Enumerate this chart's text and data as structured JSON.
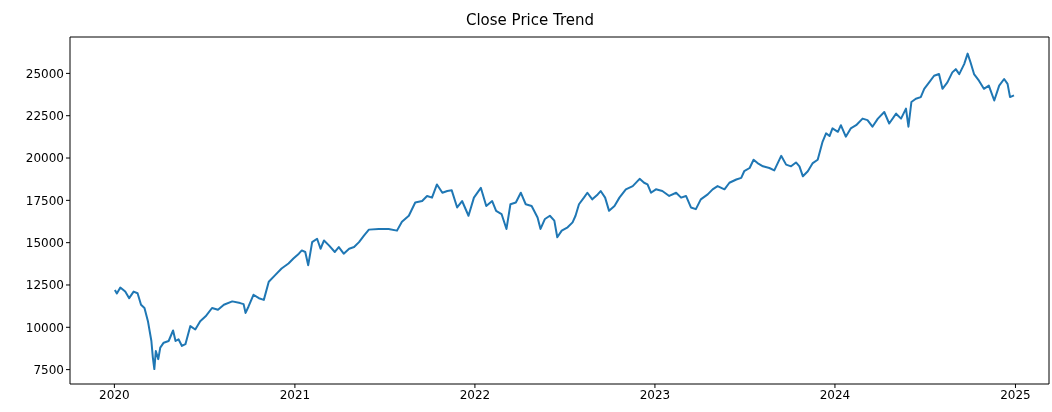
{
  "chart_data": {
    "type": "line",
    "title": "Close Price Trend",
    "x": [
      "2020-01-02",
      "2020-01-06",
      "2020-01-13",
      "2020-01-23",
      "2020-01-31",
      "2020-02-09",
      "2020-02-17",
      "2020-02-24",
      "2020-03-02",
      "2020-03-09",
      "2020-03-16",
      "2020-03-19",
      "2020-03-22",
      "2020-03-25",
      "2020-03-30",
      "2020-04-03",
      "2020-04-10",
      "2020-04-20",
      "2020-04-29",
      "2020-05-04",
      "2020-05-10",
      "2020-05-17",
      "2020-05-24",
      "2020-06-03",
      "2020-06-13",
      "2020-06-23",
      "2020-07-04",
      "2020-07-17",
      "2020-07-29",
      "2020-08-10",
      "2020-08-27",
      "2020-09-12",
      "2020-09-19",
      "2020-09-23",
      "2020-09-29",
      "2020-10-09",
      "2020-10-20",
      "2020-10-30",
      "2020-11-09",
      "2020-11-22",
      "2020-12-05",
      "2020-12-19",
      "2020-12-29",
      "2021-01-09",
      "2021-01-15",
      "2021-01-22",
      "2021-01-28",
      "2021-02-05",
      "2021-02-15",
      "2021-02-22",
      "2021-03-01",
      "2021-03-11",
      "2021-03-23",
      "2021-03-31",
      "2021-04-10",
      "2021-04-21",
      "2021-05-01",
      "2021-05-11",
      "2021-05-21",
      "2021-05-31",
      "2021-06-20",
      "2021-07-10",
      "2021-07-27",
      "2021-08-06",
      "2021-08-20",
      "2021-09-02",
      "2021-09-16",
      "2021-09-26",
      "2021-10-06",
      "2021-10-16",
      "2021-10-27",
      "2021-11-06",
      "2021-11-15",
      "2021-11-26",
      "2021-12-06",
      "2021-12-19",
      "2021-12-30",
      "2022-01-13",
      "2022-01-24",
      "2022-02-05",
      "2022-02-13",
      "2022-02-24",
      "2022-03-06",
      "2022-03-14",
      "2022-03-25",
      "2022-04-04",
      "2022-04-14",
      "2022-04-26",
      "2022-05-08",
      "2022-05-14",
      "2022-05-23",
      "2022-06-02",
      "2022-06-11",
      "2022-06-17",
      "2022-06-26",
      "2022-07-08",
      "2022-07-18",
      "2022-07-24",
      "2022-07-31",
      "2022-08-10",
      "2022-08-17",
      "2022-08-27",
      "2022-09-07",
      "2022-09-13",
      "2022-09-22",
      "2022-09-30",
      "2022-10-11",
      "2022-10-21",
      "2022-11-03",
      "2022-11-17",
      "2022-12-01",
      "2022-12-10",
      "2022-12-17",
      "2022-12-24",
      "2023-01-03",
      "2023-01-16",
      "2023-01-30",
      "2023-02-13",
      "2023-02-23",
      "2023-03-05",
      "2023-03-15",
      "2023-03-25",
      "2023-04-04",
      "2023-04-18",
      "2023-04-28",
      "2023-05-08",
      "2023-05-22",
      "2023-06-01",
      "2023-06-15",
      "2023-06-25",
      "2023-07-01",
      "2023-07-12",
      "2023-07-20",
      "2023-07-28",
      "2023-08-08",
      "2023-08-21",
      "2023-08-31",
      "2023-09-14",
      "2023-09-24",
      "2023-10-04",
      "2023-10-14",
      "2023-10-21",
      "2023-10-28",
      "2023-11-07",
      "2023-11-17",
      "2023-11-27",
      "2023-12-07",
      "2023-12-14",
      "2023-12-21",
      "2023-12-27",
      "2024-01-07",
      "2024-01-13",
      "2024-01-23",
      "2024-02-02",
      "2024-02-13",
      "2024-02-26",
      "2024-03-07",
      "2024-03-17",
      "2024-03-28",
      "2024-04-10",
      "2024-04-20",
      "2024-05-04",
      "2024-05-14",
      "2024-05-24",
      "2024-05-29",
      "2024-06-04",
      "2024-06-13",
      "2024-06-23",
      "2024-06-30",
      "2024-07-10",
      "2024-07-20",
      "2024-07-30",
      "2024-08-06",
      "2024-08-16",
      "2024-08-26",
      "2024-09-02",
      "2024-09-09",
      "2024-09-19",
      "2024-09-26",
      "2024-10-02",
      "2024-10-09",
      "2024-10-19",
      "2024-10-29",
      "2024-11-08",
      "2024-11-19",
      "2024-11-29",
      "2024-12-09",
      "2024-12-16",
      "2024-12-21",
      "2024-12-29"
    ],
    "values": [
      12200,
      12000,
      12350,
      12110,
      11720,
      12110,
      12010,
      11330,
      11140,
      10360,
      9190,
      8210,
      7530,
      8600,
      8120,
      8800,
      9090,
      9190,
      9810,
      9190,
      9290,
      8900,
      9000,
      10070,
      9870,
      10360,
      10650,
      11140,
      11040,
      11330,
      11530,
      11430,
      11370,
      10850,
      11230,
      11920,
      11720,
      11620,
      12690,
      13080,
      13470,
      13770,
      14060,
      14350,
      14540,
      14450,
      13670,
      15030,
      15230,
      14640,
      15130,
      14840,
      14450,
      14740,
      14350,
      14640,
      14740,
      15030,
      15420,
      15770,
      15810,
      15810,
      15710,
      16240,
      16590,
      17370,
      17460,
      17760,
      17660,
      18440,
      17950,
      18050,
      18090,
      17080,
      17460,
      16590,
      17660,
      18240,
      17170,
      17460,
      16880,
      16690,
      15810,
      17270,
      17370,
      17950,
      17270,
      17170,
      16490,
      15810,
      16400,
      16590,
      16300,
      15320,
      15710,
      15910,
      16200,
      16590,
      17270,
      17660,
      17950,
      17560,
      17850,
      18050,
      17660,
      16880,
      17170,
      17660,
      18150,
      18340,
      18770,
      18540,
      18440,
      17950,
      18150,
      18050,
      17760,
      17950,
      17660,
      17760,
      17080,
      16980,
      17560,
      17850,
      18150,
      18340,
      18150,
      18540,
      18730,
      18830,
      19220,
      19410,
      19900,
      19700,
      19510,
      19410,
      19270,
      20130,
      19610,
      19510,
      19740,
      19510,
      18920,
      19220,
      19700,
      19900,
      20970,
      21460,
      21300,
      21750,
      21550,
      21940,
      21260,
      21750,
      21940,
      22330,
      22240,
      21850,
      22330,
      22720,
      22040,
      22620,
      22330,
      22920,
      21850,
      23310,
      23500,
      23600,
      24090,
      24470,
      24860,
      24960,
      24090,
      24470,
      25060,
      25250,
      24960,
      25550,
      26170,
      25640,
      24960,
      24570,
      24090,
      24280,
      23400,
      24280,
      24670,
      24380,
      23600,
      23700
    ],
    "color": "#1f77b4",
    "xlim": [
      "2019-10-03",
      "2025-03-10"
    ],
    "xticks": [
      {
        "value": "2020-01-01",
        "label": "2020"
      },
      {
        "value": "2021-01-01",
        "label": "2021"
      },
      {
        "value": "2022-01-01",
        "label": "2022"
      },
      {
        "value": "2023-01-01",
        "label": "2023"
      },
      {
        "value": "2024-01-01",
        "label": "2024"
      },
      {
        "value": "2025-01-01",
        "label": "2025"
      }
    ],
    "ylim": [
      6650,
      27150
    ],
    "yticks": [
      7500,
      10000,
      12500,
      15000,
      17500,
      20000,
      22500,
      25000
    ],
    "grid": false,
    "legend": false,
    "marker": "none",
    "line_style": "solid"
  }
}
